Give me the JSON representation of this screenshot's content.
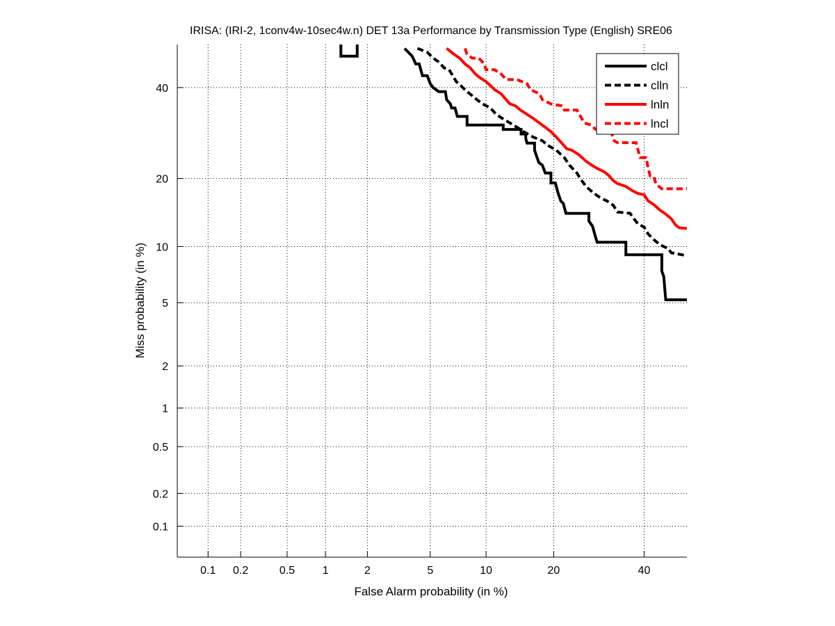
{
  "chart_data": {
    "type": "line",
    "title": "IRISA: (IRI-2, 1conv4w-10sec4w.n) DET 13a Performance by Transmission Type (English) SRE06",
    "xlabel": "False Alarm probability (in %)",
    "ylabel": "Miss probability (in %)",
    "scale": "normal-deviate (probit)",
    "xlim": [
      0.05,
      51
    ],
    "ylim": [
      0.05,
      51
    ],
    "xticks": [
      0.1,
      0.2,
      0.5,
      1,
      2,
      5,
      10,
      20,
      40
    ],
    "xtick_labels": [
      "0.1",
      "0.2",
      "0.5",
      "1",
      "2",
      "5",
      "10",
      "20",
      "40"
    ],
    "yticks": [
      0.1,
      0.2,
      0.5,
      1,
      2,
      5,
      10,
      20,
      40
    ],
    "ytick_labels": [
      "0.1",
      "0.2",
      "0.5",
      "1",
      "2",
      "5",
      "10",
      "20",
      "40"
    ],
    "grid": true,
    "legend_position": "top-right",
    "series": [
      {
        "name": "clcl",
        "color": "#000000",
        "style": "solid",
        "segments": [
          [
            [
              1.3,
              51
            ],
            [
              1.3,
              48
            ],
            [
              1.7,
              48
            ],
            [
              1.7,
              51
            ]
          ],
          [
            [
              3.5,
              50
            ],
            [
              3.9,
              48
            ],
            [
              4.1,
              46
            ],
            [
              4.3,
              46
            ],
            [
              4.5,
              43
            ],
            [
              4.8,
              43
            ],
            [
              5.0,
              41
            ],
            [
              5.2,
              40
            ],
            [
              5.6,
              39
            ],
            [
              6.1,
              39
            ],
            [
              6.2,
              37
            ],
            [
              6.5,
              36
            ],
            [
              6.6,
              35
            ],
            [
              6.9,
              35
            ],
            [
              7.1,
              33
            ],
            [
              8.0,
              33
            ],
            [
              8.0,
              31
            ],
            [
              10.1,
              31
            ],
            [
              10.1,
              31
            ],
            [
              12.1,
              31
            ],
            [
              12.1,
              30
            ],
            [
              14.6,
              30
            ],
            [
              14.6,
              29
            ],
            [
              15.3,
              29
            ],
            [
              15.3,
              28
            ],
            [
              15.5,
              27
            ],
            [
              16.7,
              27
            ],
            [
              16.7,
              25.5
            ],
            [
              17.4,
              23
            ],
            [
              18.0,
              22.5
            ],
            [
              18.5,
              21
            ],
            [
              19.5,
              21
            ],
            [
              19.5,
              19.2
            ],
            [
              20.3,
              19.2
            ],
            [
              20.8,
              17.5
            ],
            [
              21.3,
              16.2
            ],
            [
              21.8,
              15.8
            ],
            [
              22.3,
              14.3
            ],
            [
              27.0,
              14.3
            ],
            [
              27.0,
              13.2
            ],
            [
              27.8,
              12.5
            ],
            [
              28.3,
              11.4
            ],
            [
              28.8,
              10.5
            ],
            [
              35.5,
              10.5
            ],
            [
              35.5,
              9.1
            ],
            [
              44.5,
              9.1
            ],
            [
              44.5,
              7.5
            ],
            [
              45.0,
              7.0
            ],
            [
              45.5,
              5.2
            ],
            [
              51.0,
              5.2
            ]
          ]
        ]
      },
      {
        "name": "clln",
        "color": "#000000",
        "style": "dashed",
        "segments": [
          [
            [
              4.2,
              50
            ],
            [
              4.8,
              49
            ],
            [
              5.2,
              47.5
            ],
            [
              5.6,
              46.5
            ],
            [
              6.0,
              45
            ],
            [
              6.4,
              44.5
            ],
            [
              6.7,
              43
            ],
            [
              7.0,
              41.5
            ],
            [
              7.4,
              40.5
            ],
            [
              8.0,
              39
            ],
            [
              8.5,
              38
            ],
            [
              9.0,
              37
            ],
            [
              9.6,
              36
            ],
            [
              10.5,
              35
            ],
            [
              11.2,
              33.5
            ],
            [
              12.0,
              32.5
            ],
            [
              13.0,
              31.5
            ],
            [
              14.0,
              30.5
            ],
            [
              15.0,
              29.5
            ],
            [
              16.5,
              28.3
            ],
            [
              18.0,
              27.5
            ],
            [
              19.0,
              26.5
            ],
            [
              20.5,
              25.5
            ],
            [
              22.0,
              24
            ],
            [
              23.0,
              22.5
            ],
            [
              24.5,
              21
            ],
            [
              25.5,
              19.6
            ],
            [
              26.5,
              18.5
            ],
            [
              28.0,
              17.5
            ],
            [
              29.5,
              16.7
            ],
            [
              31.0,
              16.2
            ],
            [
              32.5,
              15.5
            ],
            [
              33.5,
              14.5
            ],
            [
              36.5,
              14.3
            ],
            [
              37.5,
              13.5
            ],
            [
              38.5,
              12.8
            ],
            [
              40.0,
              12.4
            ],
            [
              41.0,
              11.5
            ],
            [
              42.5,
              10.8
            ],
            [
              44.0,
              10.2
            ],
            [
              46.0,
              9.8
            ],
            [
              47.0,
              9.3
            ],
            [
              51.0,
              9.0
            ]
          ]
        ]
      },
      {
        "name": "lnln",
        "color": "#ff0000",
        "style": "solid",
        "segments": [
          [
            [
              6.2,
              50
            ],
            [
              6.8,
              48.5
            ],
            [
              7.3,
              47.5
            ],
            [
              7.8,
              46
            ],
            [
              8.3,
              45
            ],
            [
              8.8,
              43.5
            ],
            [
              9.3,
              42.5
            ],
            [
              10.0,
              41.5
            ],
            [
              10.5,
              40.5
            ],
            [
              11.0,
              39.5
            ],
            [
              11.8,
              38.5
            ],
            [
              12.5,
              37
            ],
            [
              13.0,
              36
            ],
            [
              13.8,
              35.5
            ],
            [
              14.5,
              34.5
            ],
            [
              15.5,
              33.5
            ],
            [
              16.5,
              32.5
            ],
            [
              17.5,
              31.5
            ],
            [
              18.5,
              30.5
            ],
            [
              19.5,
              29.5
            ],
            [
              20.5,
              28.3
            ],
            [
              21.5,
              27
            ],
            [
              22.5,
              25.8
            ],
            [
              23.5,
              25.5
            ],
            [
              25.0,
              24.5
            ],
            [
              26.5,
              23.2
            ],
            [
              28.0,
              22.3
            ],
            [
              29.0,
              21.8
            ],
            [
              30.5,
              21.2
            ],
            [
              31.5,
              20.5
            ],
            [
              32.5,
              19.6
            ],
            [
              33.5,
              19.1
            ],
            [
              35.5,
              18.6
            ],
            [
              37.0,
              17.9
            ],
            [
              38.5,
              17.4
            ],
            [
              40.0,
              17.2
            ],
            [
              41.0,
              16.2
            ],
            [
              42.5,
              15.6
            ],
            [
              44.0,
              14.8
            ],
            [
              45.5,
              14.2
            ],
            [
              47.0,
              13.5
            ],
            [
              48.0,
              12.7
            ],
            [
              49.0,
              12.3
            ],
            [
              51.0,
              12.2
            ]
          ]
        ]
      },
      {
        "name": "lncl",
        "color": "#ff0000",
        "style": "dashed",
        "segments": [
          [
            [
              7.8,
              50
            ],
            [
              8.0,
              48.5
            ],
            [
              8.5,
              47.5
            ],
            [
              9.2,
              47.5
            ],
            [
              9.8,
              46
            ],
            [
              10.0,
              44.5
            ],
            [
              11.0,
              44.5
            ],
            [
              11.8,
              43.5
            ],
            [
              12.5,
              42
            ],
            [
              14.0,
              42
            ],
            [
              15.5,
              41
            ],
            [
              16.0,
              39.5
            ],
            [
              17.5,
              38.5
            ],
            [
              18.0,
              37
            ],
            [
              19.5,
              36
            ],
            [
              21.5,
              35.5
            ],
            [
              22.0,
              34.5
            ],
            [
              24.5,
              34.5
            ],
            [
              25.5,
              32.5
            ],
            [
              26.0,
              31.5
            ],
            [
              27.5,
              31
            ],
            [
              28.5,
              30
            ],
            [
              32.0,
              30
            ],
            [
              32.3,
              28.5
            ],
            [
              32.7,
              27.5
            ],
            [
              33.5,
              27.1
            ],
            [
              36.5,
              27.1
            ],
            [
              38.0,
              27.1
            ],
            [
              38.5,
              25.5
            ],
            [
              39.0,
              24
            ],
            [
              40.5,
              24
            ],
            [
              41.0,
              22
            ],
            [
              41.5,
              20.5
            ],
            [
              42.5,
              20.3
            ],
            [
              43.0,
              19.0
            ],
            [
              44.5,
              18.2
            ],
            [
              51.0,
              18.2
            ]
          ]
        ]
      }
    ]
  }
}
